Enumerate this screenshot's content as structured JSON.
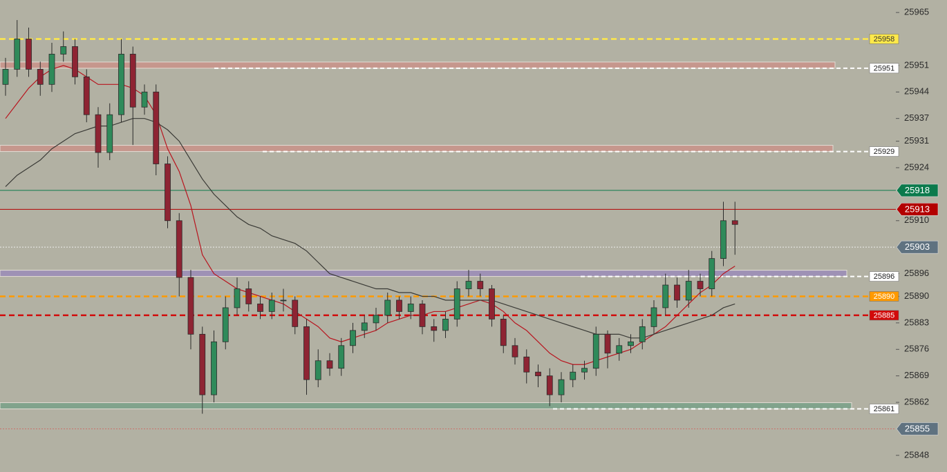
{
  "chart_data": {
    "type": "candlestick",
    "ylim": [
      25843.6,
      25968.3
    ],
    "yticks": [
      25965,
      25951,
      25944,
      25937,
      25931,
      25924,
      25910,
      25896,
      25890,
      25883,
      25876,
      25869,
      25862,
      25848
    ],
    "up_color": "#2f8a5a",
    "down_color": "#8e2433",
    "open": [
      25946,
      25950,
      25958,
      25950,
      25946,
      25954,
      25956,
      25948,
      25938,
      25928,
      25938,
      25954,
      25940,
      25944,
      25925,
      25910,
      25895,
      25880,
      25864,
      25878,
      25887,
      25892,
      25888,
      25886,
      25889,
      25889,
      25882,
      25868,
      25873,
      25871,
      25877,
      25881,
      25883,
      25885,
      25889,
      25886,
      25888,
      25882,
      25881,
      25884,
      25892,
      25894,
      25892,
      25884,
      25877,
      25874,
      25870,
      25869,
      25864,
      25868,
      25870,
      25871,
      25880,
      25875,
      25877,
      25878,
      25882,
      25887,
      25893,
      25889,
      25894,
      25892,
      25900,
      25910
    ],
    "high": [
      25953,
      25963,
      25961,
      25952,
      25957,
      25960,
      25958,
      25950,
      25940,
      25941,
      25958,
      25956,
      25946,
      25946,
      25927,
      25912,
      25897,
      25882,
      25881,
      25890,
      25895,
      25894,
      25890,
      25891,
      25892,
      25890,
      25884,
      25876,
      25875,
      25879,
      25883,
      25885,
      25887,
      25891,
      25890,
      25890,
      25889,
      25884,
      25886,
      25894,
      25897,
      25896,
      25893,
      25885,
      25879,
      25876,
      25872,
      25871,
      25870,
      25872,
      25873,
      25882,
      25881,
      25879,
      25880,
      25884,
      25889,
      25896,
      25895,
      25897,
      25896,
      25902,
      25915,
      25915
    ],
    "low": [
      25943,
      25948,
      25948,
      25943,
      25944,
      25952,
      25946,
      25936,
      25924,
      25926,
      25936,
      25930,
      25938,
      25922,
      25908,
      25890,
      25876,
      25859,
      25862,
      25876,
      25885,
      25886,
      25884,
      25884,
      25886,
      25880,
      25864,
      25866,
      25869,
      25869,
      25875,
      25879,
      25881,
      25883,
      25884,
      25884,
      25880,
      25878,
      25879,
      25882,
      25890,
      25890,
      25882,
      25875,
      25872,
      25867,
      25866,
      25861,
      25862,
      25866,
      25868,
      25869,
      25871,
      25873,
      25875,
      25876,
      25880,
      25885,
      25887,
      25887,
      25890,
      25890,
      25898,
      25901
    ],
    "close": [
      25950,
      25958,
      25950,
      25946,
      25954,
      25956,
      25948,
      25938,
      25928,
      25938,
      25954,
      25940,
      25944,
      25925,
      25910,
      25895,
      25880,
      25864,
      25878,
      25887,
      25892,
      25888,
      25886,
      25889,
      25889,
      25882,
      25868,
      25873,
      25871,
      25877,
      25881,
      25883,
      25885,
      25889,
      25886,
      25888,
      25882,
      25881,
      25884,
      25892,
      25894,
      25892,
      25884,
      25877,
      25874,
      25870,
      25869,
      25864,
      25868,
      25870,
      25871,
      25880,
      25875,
      25877,
      25878,
      25882,
      25887,
      25893,
      25889,
      25894,
      25892,
      25900,
      25910,
      25909
    ],
    "moving_averages": [
      {
        "color": "#b8141e",
        "values": [
          25937,
          25941,
          25945,
          25948,
          25950,
          25951,
          25950,
          25948,
          25946,
          25946,
          25946,
          25945,
          25943,
          25938,
          25929,
          25923,
          25914,
          25901,
          25896,
          25894,
          25892,
          25891,
          25890,
          25889,
          25888,
          25886,
          25884,
          25882,
          25879,
          25878,
          25879,
          25880,
          25881,
          25883,
          25884,
          25885,
          25885,
          25886,
          25886,
          25887,
          25888,
          25889,
          25888,
          25886,
          25883,
          25881,
          25878,
          25875,
          25873,
          25872,
          25872,
          25873,
          25874,
          25875,
          25876,
          25878,
          25880,
          25882,
          25885,
          25888,
          25891,
          25893,
          25896,
          25898
        ]
      },
      {
        "color": "#3a3a36",
        "values": [
          25919,
          25922,
          25924,
          25926,
          25929,
          25931,
          25933,
          25934,
          25935,
          25935,
          25936,
          25937,
          25937,
          25936,
          25934,
          25931,
          25926,
          25921,
          25917,
          25914,
          25911,
          25909,
          25908,
          25906,
          25905,
          25904,
          25902,
          25899,
          25896,
          25895,
          25894,
          25893,
          25892,
          25892,
          25891,
          25891,
          25890,
          25890,
          25889,
          25889,
          25889,
          25889,
          25889,
          25888,
          25887,
          25886,
          25885,
          25884,
          25883,
          25882,
          25881,
          25880,
          25880,
          25880,
          25879,
          25879,
          25880,
          25881,
          25882,
          25883,
          25884,
          25885,
          25887,
          25888
        ]
      }
    ],
    "levels": [
      {
        "price": 25958,
        "kind": "line",
        "style": "dashed",
        "color": "#ffe94a",
        "tag": "box",
        "text_color": "#333"
      },
      {
        "price": 25951,
        "kind": "zone",
        "color": "#c8968c",
        "tag": "box",
        "text_color": "#222"
      },
      {
        "price": 25929,
        "kind": "zone",
        "color": "#c8968c",
        "tag": "box",
        "text_color": "#222"
      },
      {
        "price": 25918,
        "kind": "line",
        "style": "solid",
        "color": "#0b7a4c",
        "tag": "arrow",
        "text_color": "#fff"
      },
      {
        "price": 25913,
        "kind": "line",
        "style": "solid",
        "color": "#b30000",
        "tag": "arrow",
        "text_color": "#fff"
      },
      {
        "price": 25903,
        "kind": "line",
        "style": "dotted",
        "color": "#eeeeee",
        "tag": "arrow",
        "text_color": "#fff",
        "tag_color": "#5f7280"
      },
      {
        "price": 25896,
        "kind": "zone",
        "color": "#9d90b6",
        "tag": "box",
        "text_color": "#222"
      },
      {
        "price": 25890,
        "kind": "line",
        "style": "dashed",
        "color": "#ff9a00",
        "tag": "box",
        "text_color": "#fff"
      },
      {
        "price": 25885,
        "kind": "line",
        "style": "dashed",
        "color": "#d20a0a",
        "tag": "box",
        "text_color": "#fff"
      },
      {
        "price": 25861,
        "kind": "zone",
        "color": "#7fa38b",
        "tag": "box",
        "text_color": "#222"
      },
      {
        "price": 25855,
        "kind": "line",
        "style": "dotted",
        "color": "#c9706a",
        "tag": "arrow",
        "text_color": "#fff",
        "tag_color": "#5f7280"
      }
    ]
  }
}
